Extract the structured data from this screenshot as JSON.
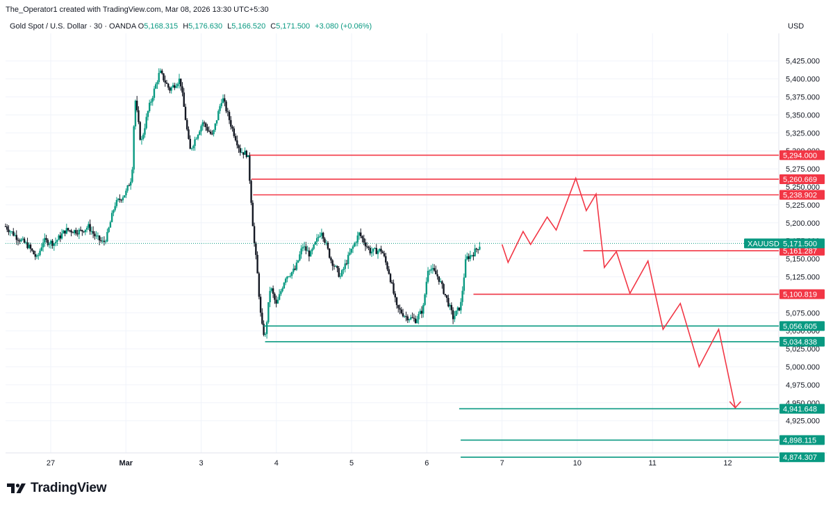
{
  "header": {
    "attribution": "The_Operator1 created with TradingView.com, Mar 08, 2026 13:30 UTC+5:30"
  },
  "legend": {
    "symbol_desc": "Gold Spot / U.S. Dollar · 30 · OANDA",
    "open_label": "O",
    "open": "5,168.315",
    "high_label": "H",
    "high": "5,176.630",
    "low_label": "L",
    "low": "5,166.520",
    "close_label": "C",
    "close": "5,171.500",
    "change": "+3.080 (+0.06%)"
  },
  "currency": "USD",
  "brand": {
    "name": "TradingView"
  },
  "colors": {
    "up": "#089981",
    "down": "#131722",
    "resistance": "#f23645",
    "support": "#089981",
    "ticker": "#089981"
  },
  "chart_data": {
    "type": "candlestick",
    "title": "Gold Spot / U.S. Dollar · 30 · OANDA",
    "y_axis": {
      "min": 4850,
      "max": 5440,
      "ticks": [
        4925,
        4950,
        4975,
        5000,
        5025,
        5050,
        5075,
        5100,
        5125,
        5150,
        5175,
        5200,
        5225,
        5250,
        5275,
        5300,
        5325,
        5350,
        5375,
        5400,
        5425
      ],
      "tick_labels": [
        "4,925.000",
        "4,950.000",
        "4,975.000",
        "5,000.000",
        "5,025.000",
        "5,050.000",
        "5,075.000",
        "5,100.000",
        "5,125.000",
        "5,150.000",
        "5,175.000",
        "5,200.000",
        "5,225.000",
        "5,250.000",
        "5,275.000",
        "5,300.000",
        "5,325.000",
        "5,350.000",
        "5,375.000",
        "5,400.000",
        "5,425.000"
      ]
    },
    "x_axis": {
      "labels": [
        "27",
        "Mar",
        "3",
        "4",
        "5",
        "6",
        "7",
        "10",
        "11",
        "12"
      ],
      "positions": [
        0.6,
        1.6,
        2.6,
        3.6,
        4.6,
        5.6,
        6.6,
        7.6,
        8.6,
        9.6
      ],
      "min": 0,
      "max": 10.27
    },
    "price_path": [
      [
        0.0,
        5195
      ],
      [
        0.15,
        5180
      ],
      [
        0.3,
        5168
      ],
      [
        0.42,
        5150
      ],
      [
        0.5,
        5175
      ],
      [
        0.65,
        5172
      ],
      [
        0.8,
        5190
      ],
      [
        1.0,
        5188
      ],
      [
        1.1,
        5195
      ],
      [
        1.2,
        5180
      ],
      [
        1.3,
        5172
      ],
      [
        1.35,
        5182
      ],
      [
        1.45,
        5225
      ],
      [
        1.6,
        5242
      ],
      [
        1.68,
        5265
      ],
      [
        1.72,
        5375
      ],
      [
        1.8,
        5310
      ],
      [
        1.9,
        5358
      ],
      [
        2.05,
        5410
      ],
      [
        2.18,
        5385
      ],
      [
        2.32,
        5400
      ],
      [
        2.45,
        5300
      ],
      [
        2.62,
        5340
      ],
      [
        2.75,
        5320
      ],
      [
        2.88,
        5375
      ],
      [
        3.0,
        5335
      ],
      [
        3.12,
        5300
      ],
      [
        3.22,
        5295
      ],
      [
        3.26,
        5240
      ],
      [
        3.3,
        5178
      ],
      [
        3.34,
        5140
      ],
      [
        3.4,
        5060
      ],
      [
        3.45,
        5040
      ],
      [
        3.52,
        5112
      ],
      [
        3.6,
        5085
      ],
      [
        3.72,
        5125
      ],
      [
        3.85,
        5135
      ],
      [
        3.95,
        5168
      ],
      [
        4.05,
        5155
      ],
      [
        4.2,
        5190
      ],
      [
        4.32,
        5150
      ],
      [
        4.45,
        5125
      ],
      [
        4.58,
        5158
      ],
      [
        4.7,
        5185
      ],
      [
        4.85,
        5160
      ],
      [
        5.0,
        5162
      ],
      [
        5.1,
        5130
      ],
      [
        5.2,
        5082
      ],
      [
        5.32,
        5070
      ],
      [
        5.45,
        5065
      ],
      [
        5.55,
        5080
      ],
      [
        5.62,
        5140
      ],
      [
        5.75,
        5125
      ],
      [
        5.88,
        5090
      ],
      [
        5.95,
        5068
      ],
      [
        6.05,
        5085
      ],
      [
        6.12,
        5150
      ],
      [
        6.22,
        5158
      ],
      [
        6.32,
        5171.5
      ]
    ],
    "last_price": 5171.5,
    "last_price_label": "5,171.500",
    "ticker": "XAUUSD",
    "levels": [
      {
        "kind": "resistance",
        "value": 5294.0,
        "label": "5,294.000",
        "x_start": 3.25
      },
      {
        "kind": "resistance",
        "value": 5260.669,
        "label": "5,260.669",
        "x_start": 3.27
      },
      {
        "kind": "resistance",
        "value": 5238.902,
        "label": "5,238.902",
        "x_start": 3.29
      },
      {
        "kind": "resistance",
        "value": 5161.287,
        "label": "5,161.287",
        "x_start": 7.68
      },
      {
        "kind": "resistance",
        "value": 5100.819,
        "label": "5,100.819",
        "x_start": 6.22
      },
      {
        "kind": "support",
        "value": 5056.605,
        "label": "5,056.605",
        "x_start": 3.43
      },
      {
        "kind": "support",
        "value": 5034.838,
        "label": "5,034.838",
        "x_start": 3.45
      },
      {
        "kind": "support",
        "value": 4941.648,
        "label": "4,941.648",
        "x_start": 6.03
      },
      {
        "kind": "support",
        "value": 4898.115,
        "label": "4,898.115",
        "x_start": 6.05
      },
      {
        "kind": "support",
        "value": 4874.307,
        "label": "4,874.307",
        "x_start": 6.05
      }
    ],
    "projection_path": [
      [
        6.6,
        5170
      ],
      [
        6.68,
        5145
      ],
      [
        6.88,
        5188
      ],
      [
        6.98,
        5170
      ],
      [
        7.2,
        5208
      ],
      [
        7.32,
        5190
      ],
      [
        7.58,
        5262
      ],
      [
        7.72,
        5217
      ],
      [
        7.85,
        5240
      ],
      [
        7.96,
        5138
      ],
      [
        8.12,
        5160
      ],
      [
        8.3,
        5102
      ],
      [
        8.54,
        5147
      ],
      [
        8.74,
        5052
      ],
      [
        8.97,
        5088
      ],
      [
        9.22,
        5000
      ],
      [
        9.48,
        5052
      ],
      [
        9.7,
        4943
      ]
    ]
  }
}
